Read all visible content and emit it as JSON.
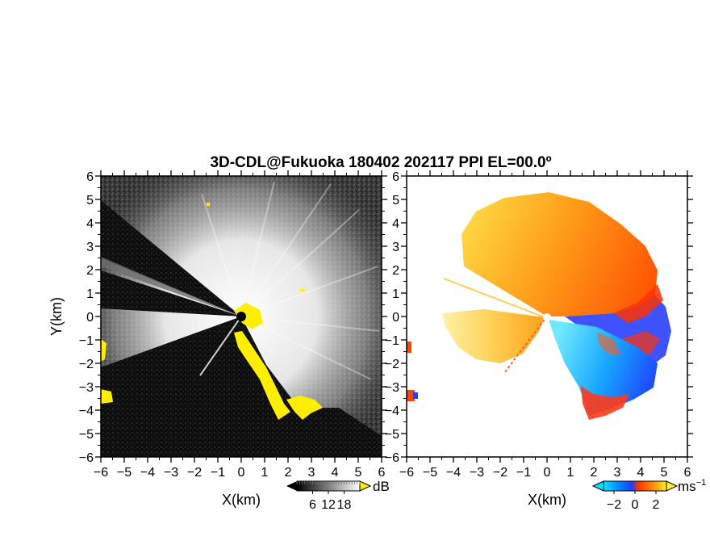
{
  "chart_data": {
    "type": "heatmap",
    "title": "3D-CDL@Fukuoka 180402 202117 PPI EL=00.0º",
    "panels": [
      {
        "id": "snr",
        "quantity": "backscatter intensity",
        "xlabel": "X(km)",
        "ylabel": "Y(km)",
        "xlim": [
          -6,
          6
        ],
        "ylim": [
          -6,
          6
        ],
        "x_ticks": [
          -6,
          -5,
          -4,
          -3,
          -2,
          -1,
          0,
          1,
          2,
          3,
          4,
          5,
          6
        ],
        "y_ticks": [
          -6,
          -5,
          -4,
          -3,
          -2,
          -1,
          0,
          1,
          2,
          3,
          4,
          5,
          6
        ],
        "colorbar": {
          "unit": "dB",
          "ticks": [
            6,
            12,
            18
          ],
          "range": [
            0,
            24
          ],
          "colors": [
            "#000000",
            "#ffffff"
          ],
          "over_color": "#ffee00"
        }
      },
      {
        "id": "velocity",
        "quantity": "doppler velocity",
        "xlabel": "X(km)",
        "xlim": [
          -6,
          6
        ],
        "ylim": [
          -6,
          6
        ],
        "x_ticks": [
          -6,
          -5,
          -4,
          -3,
          -2,
          -1,
          0,
          1,
          2,
          3,
          4,
          5,
          6
        ],
        "y_ticks": [
          -6,
          -5,
          -4,
          -3,
          -2,
          -1,
          0,
          1,
          2,
          3,
          4,
          5,
          6
        ],
        "colorbar": {
          "unit": "ms",
          "unit_exponent": "−1",
          "ticks": [
            -2,
            0,
            2
          ],
          "range": [
            -3,
            3
          ],
          "colors": [
            "#00e5ff",
            "#1a40ff",
            "#ff3300",
            "#ff8800",
            "#ffee33"
          ]
        }
      }
    ]
  }
}
